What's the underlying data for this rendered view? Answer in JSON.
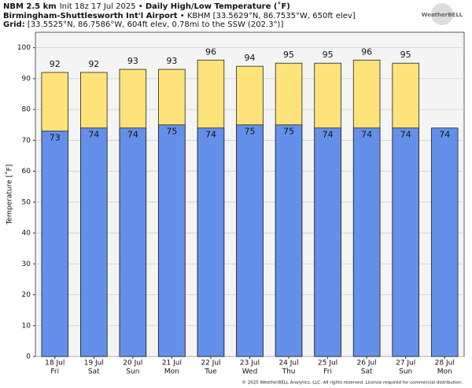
{
  "header": {
    "model": "NBM 2.5 km",
    "init": "Init 18z 17 Jul 2025 • ",
    "station": "Birmingham-Shuttlesworth Int'l Airport",
    "station_info": " • KBHM [33.5629°N, 86.7535°W, 650ft elev]",
    "grid_label": "Grid:",
    "grid_info": " [33.5525°N, 86.7586°W, 604ft elev, 0.78mi to the SSW (202.3°)]",
    "logo": "WeatherBELL"
  },
  "footer": "© 2025 WeatherBELL Analytics, LLC. All rights reserved. License required for commercial distribution.",
  "chart_data": {
    "type": "bar",
    "title": "Daily High/Low Temperature (˚F)",
    "y_label": "Temperature [˚F]",
    "categories": [
      "18 Jul",
      "19 Jul",
      "20 Jul",
      "21 Jul",
      "22 Jul",
      "23 Jul",
      "24 Jul",
      "25 Jul",
      "26 Jul",
      "27 Jul",
      "28 Jul"
    ],
    "weekdays": [
      "Fri",
      "Sat",
      "Sun",
      "Mon",
      "Tue",
      "Wed",
      "Thu",
      "Fri",
      "Sat",
      "Sun",
      "Mon"
    ],
    "series": [
      {
        "name": "High",
        "color": "#ffe27a",
        "values": [
          92,
          92,
          93,
          93,
          96,
          94,
          95,
          95,
          96,
          95,
          null
        ]
      },
      {
        "name": "Low",
        "color": "#6490ea",
        "values": [
          73,
          74,
          74,
          75,
          74,
          75,
          75,
          74,
          74,
          74,
          74
        ]
      }
    ],
    "ylim": [
      0,
      105
    ],
    "yticks": [
      0,
      10,
      20,
      30,
      40,
      50,
      60,
      70,
      80,
      90,
      100
    ],
    "grid": true
  }
}
